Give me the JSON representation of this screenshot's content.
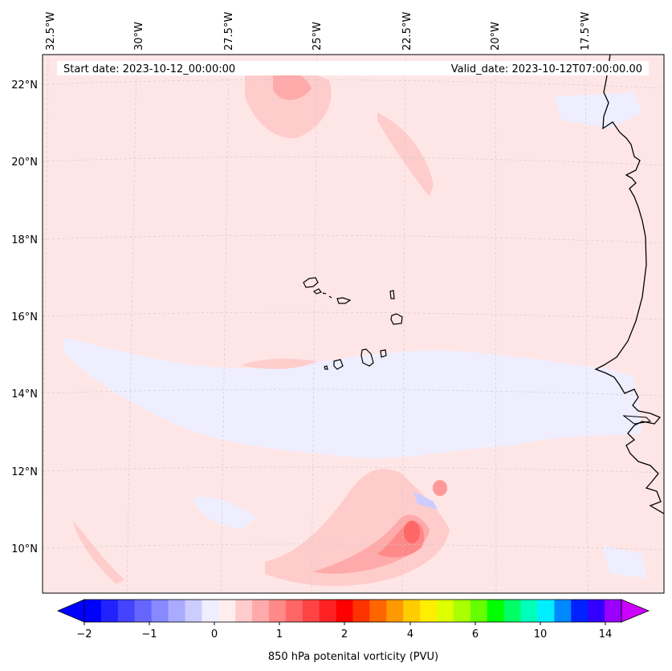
{
  "map": {
    "header": {
      "start_date": "Start date: 2023-10-12_00:00:00",
      "valid_date": "Valid_date: 2023-10-12T07:00:00.00"
    },
    "longitude_labels": [
      "32.5°W",
      "30°W",
      "27.5°W",
      "25°W",
      "22.5°W",
      "20°W",
      "17.5°W"
    ],
    "latitude_labels": [
      "22°N",
      "20°N",
      "18°N",
      "16°N",
      "14°N",
      "12°N",
      "10°N"
    ],
    "background_color": "#ffe6e6",
    "gridlines": true
  },
  "colorbar": {
    "title": "850 hPa potenital vorticity (PVU)",
    "tick_labels": [
      "−2",
      "−1",
      "0",
      "1",
      "2",
      "4",
      "6",
      "10",
      "14"
    ],
    "colors": [
      "#0000ff",
      "#2222ff",
      "#4444ff",
      "#6666ff",
      "#8888ff",
      "#aaaaff",
      "#ccccff",
      "#eeeeff",
      "#ffeeee",
      "#ffcccc",
      "#ffaaaa",
      "#ff8888",
      "#ff6666",
      "#ff4444",
      "#ff2222",
      "#ff0000",
      "#ff3300",
      "#ff6600",
      "#ff9900",
      "#ffcc00",
      "#ffee00",
      "#ddff00",
      "#aaff00",
      "#66ff00",
      "#00ff00",
      "#00ff66",
      "#00ffbb",
      "#00eeff",
      "#0088ff",
      "#0022ff",
      "#3300ff",
      "#9900ff"
    ],
    "under_color": "#0000ff",
    "over_color": "#cc00ff"
  }
}
